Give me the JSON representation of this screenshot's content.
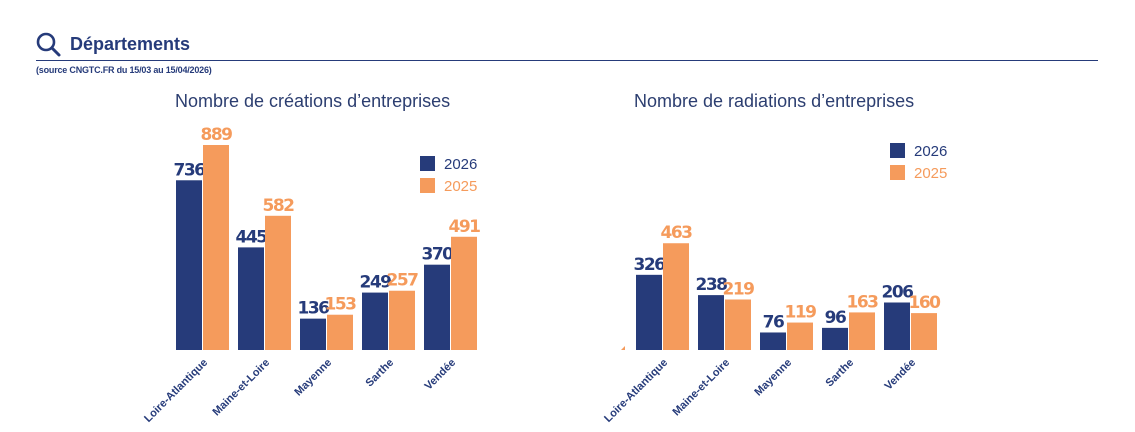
{
  "header": {
    "title": "Départements",
    "source": "(source CNGTC.FR du 15/03 au 15/04/2026)"
  },
  "colors": {
    "series_2026": "#263b7a",
    "series_2025": "#f59b5c"
  },
  "chart_data": [
    {
      "type": "bar",
      "title": "Nombre de créations d’entreprises",
      "categories": [
        "Loire-Atlantique",
        "Maine-et-Loire",
        "Mayenne",
        "Sarthe",
        "Vendée"
      ],
      "series": [
        {
          "name": "2026",
          "values": [
            736,
            445,
            136,
            249,
            370
          ]
        },
        {
          "name": "2025",
          "values": [
            889,
            582,
            153,
            257,
            491
          ]
        }
      ],
      "ylim": [
        0,
        889
      ],
      "legend": "right",
      "grid": false
    },
    {
      "type": "bar",
      "title": "Nombre de radiations d’entreprises",
      "categories": [
        "Loire-Atlantique",
        "Maine-et-Loire",
        "Mayenne",
        "Sarthe",
        "Vendée"
      ],
      "series": [
        {
          "name": "2026",
          "values": [
            326,
            238,
            76,
            96,
            206
          ]
        },
        {
          "name": "2025",
          "values": [
            463,
            219,
            119,
            163,
            160
          ]
        }
      ],
      "ylim": [
        0,
        889
      ],
      "legend": "top-right",
      "grid": false
    }
  ]
}
